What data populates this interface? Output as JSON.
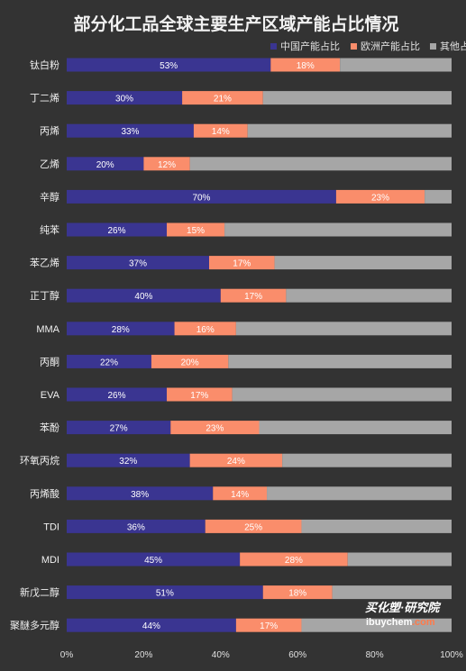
{
  "colors": {
    "background": "#333333",
    "china": "#3a3591",
    "europe": "#fa8d6b",
    "other": "#a6a6a6"
  },
  "chart_data": {
    "type": "bar",
    "orientation": "horizontal",
    "stacked": "percent",
    "title": "部分化工品全球主要生产区域产能占比情况",
    "legend_position": "top-right",
    "categories": [
      "钛白粉",
      "丁二烯",
      "丙烯",
      "乙烯",
      "辛醇",
      "纯苯",
      "苯乙烯",
      "正丁醇",
      "MMA",
      "丙酮",
      "EVA",
      "苯酚",
      "环氧丙烷",
      "丙烯酸",
      "TDI",
      "MDI",
      "新戊二醇",
      "聚醚多元醇"
    ],
    "series": [
      {
        "name": "中国产能占比",
        "values": [
          53,
          30,
          33,
          20,
          70,
          26,
          37,
          40,
          28,
          22,
          26,
          27,
          32,
          38,
          36,
          45,
          51,
          44
        ]
      },
      {
        "name": "欧洲产能占比",
        "values": [
          18,
          21,
          14,
          12,
          23,
          15,
          17,
          17,
          16,
          20,
          17,
          23,
          24,
          14,
          25,
          28,
          18,
          17
        ]
      },
      {
        "name": "其他占比",
        "values": [
          29,
          49,
          53,
          68,
          7,
          59,
          46,
          43,
          56,
          58,
          57,
          50,
          44,
          48,
          39,
          27,
          31,
          39
        ]
      }
    ],
    "x_ticks": [
      "0%",
      "20%",
      "40%",
      "60%",
      "80%",
      "100%"
    ],
    "xlim": [
      0,
      100
    ],
    "grid": false
  },
  "watermark": {
    "main": "买化塑·研究院",
    "sub": "ibuychem",
    "sub2": ".com"
  }
}
